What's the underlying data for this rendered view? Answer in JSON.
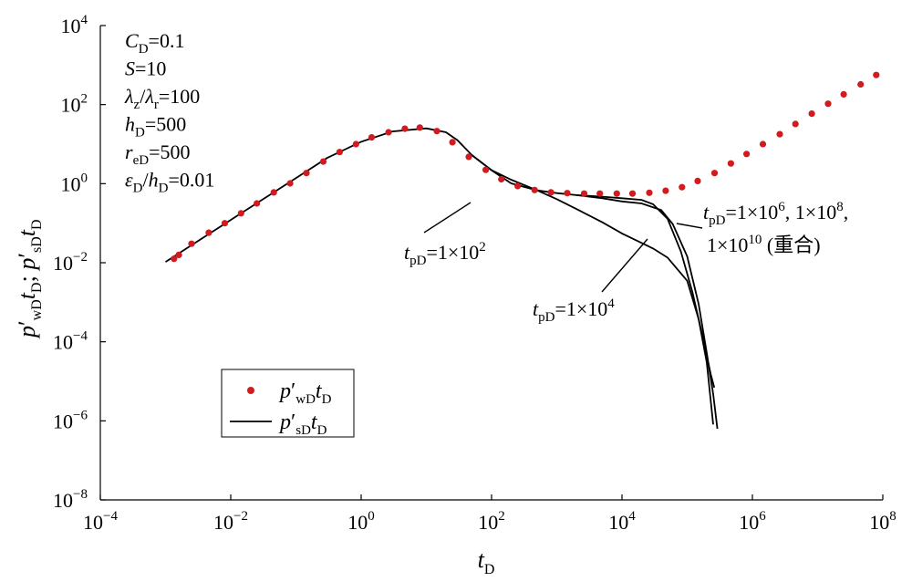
{
  "chart_data": {
    "type": "scatter",
    "xscale": "log",
    "yscale": "log",
    "xlim": [
      0.0001,
      100000000
    ],
    "ylim": [
      1e-08,
      10000
    ],
    "xlabel": {
      "base": "t",
      "sub": "D"
    },
    "ylabel": [
      {
        "base": "p",
        "prime": "′",
        "sub": "wD"
      },
      {
        "base": "t",
        "sub": "D"
      },
      {
        "sep": "; "
      },
      {
        "base": "p",
        "prime": "′",
        "sub": "sD"
      },
      {
        "base": "t",
        "sub": "D"
      }
    ],
    "x_ticks": [
      {
        "base": "10",
        "exp": "−4",
        "value": 0.0001
      },
      {
        "base": "10",
        "exp": "−2",
        "value": 0.01
      },
      {
        "base": "10",
        "exp": "0",
        "value": 1
      },
      {
        "base": "10",
        "exp": "2",
        "value": 100
      },
      {
        "base": "10",
        "exp": "4",
        "value": 10000
      },
      {
        "base": "10",
        "exp": "6",
        "value": 1000000
      },
      {
        "base": "10",
        "exp": "8",
        "value": 100000000
      }
    ],
    "y_ticks": [
      {
        "base": "10",
        "exp": "−8",
        "value": 1e-08
      },
      {
        "base": "10",
        "exp": "−6",
        "value": 1e-06
      },
      {
        "base": "10",
        "exp": "−4",
        "value": 0.0001
      },
      {
        "base": "10",
        "exp": "−2",
        "value": 0.01
      },
      {
        "base": "10",
        "exp": "0",
        "value": 1
      },
      {
        "base": "10",
        "exp": "2",
        "value": 100
      },
      {
        "base": "10",
        "exp": "4",
        "value": 10000
      }
    ],
    "parameters": [
      {
        "sym": "C",
        "sub": "D",
        "eq": "=0.1"
      },
      {
        "sym": "S",
        "sub": "",
        "eq": "=10"
      },
      {
        "sym": "λ",
        "sub": "z",
        "mid": "/",
        "sym2": "λ",
        "sub2": "r",
        "eq": "=100"
      },
      {
        "sym": "h",
        "sub": "D",
        "eq": "=500"
      },
      {
        "sym": "r",
        "sub": "eD",
        "eq": "=500"
      },
      {
        "sym": "ε",
        "sub": "D",
        "mid": "/",
        "sym2": "h",
        "sub2": "D",
        "eq": "=0.01"
      }
    ],
    "legend": {
      "placement": "lower-left",
      "items": [
        {
          "marker": "dot",
          "base": "p",
          "prime": "′",
          "sub": "wD",
          "base2": "t",
          "sub2": "D"
        },
        {
          "marker": "line",
          "base": "p",
          "prime": "′",
          "sub": "sD",
          "base2": "t",
          "sub2": "D"
        }
      ]
    },
    "dots_series": {
      "color": "#d01c1f",
      "points": [
        [
          0.00135,
          0.0126
        ],
        [
          0.0016,
          0.0158
        ],
        [
          0.0025,
          0.0302
        ],
        [
          0.0046,
          0.0575
        ],
        [
          0.0081,
          0.1
        ],
        [
          0.0144,
          0.178
        ],
        [
          0.0251,
          0.316
        ],
        [
          0.0457,
          0.603
        ],
        [
          0.0813,
          1.02
        ],
        [
          0.145,
          1.86
        ],
        [
          0.263,
          3.63
        ],
        [
          0.468,
          6.31
        ],
        [
          0.832,
          10.0
        ],
        [
          1.45,
          14.8
        ],
        [
          2.63,
          20.0
        ],
        [
          4.68,
          24.5
        ],
        [
          7.94,
          26.3
        ],
        [
          14.5,
          21.4
        ],
        [
          25.1,
          11.2
        ],
        [
          44.7,
          4.79
        ],
        [
          81.3,
          2.24
        ],
        [
          141,
          1.29
        ],
        [
          251,
          0.871
        ],
        [
          457,
          0.692
        ],
        [
          813,
          0.603
        ],
        [
          1450,
          0.575
        ],
        [
          2630,
          0.562
        ],
        [
          4570,
          0.562
        ],
        [
          8320,
          0.562
        ],
        [
          14500,
          0.562
        ],
        [
          26300,
          0.589
        ],
        [
          46800,
          0.661
        ],
        [
          83200,
          0.813
        ],
        [
          145000,
          1.17
        ],
        [
          263000,
          1.86
        ],
        [
          468000,
          3.24
        ],
        [
          813000,
          5.62
        ],
        [
          1450000,
          10.0
        ],
        [
          2630000,
          17.8
        ],
        [
          4570000,
          32.4
        ],
        [
          8130000,
          58.9
        ],
        [
          14500000,
          105
        ],
        [
          25100000,
          182
        ],
        [
          45700000,
          324
        ],
        [
          79400000,
          562
        ]
      ]
    },
    "line_series": [
      {
        "label": "1×10² curve",
        "points": [
          [
            0.001,
            0.0105
          ],
          [
            0.01,
            0.121
          ],
          [
            0.1,
            1.38
          ],
          [
            0.3,
            4.47
          ],
          [
            1,
            11.5
          ],
          [
            3,
            20.9
          ],
          [
            10,
            25.1
          ],
          [
            20,
            20.0
          ],
          [
            30,
            12.6
          ],
          [
            50,
            5.25
          ],
          [
            100,
            2.19
          ],
          [
            200,
            1.26
          ],
          [
            500,
            0.676
          ],
          [
            1000,
            0.407
          ],
          [
            2000,
            0.229
          ],
          [
            5000,
            0.105
          ],
          [
            10000,
            0.055
          ],
          [
            20000,
            0.0316
          ],
          [
            30000,
            0.0229
          ],
          [
            50000,
            0.0135
          ],
          [
            100000,
            0.0035
          ],
          [
            150000,
            0.000372
          ],
          [
            200000,
            2.95e-05
          ],
          [
            250000,
            8.1e-07
          ]
        ]
      },
      {
        "label": "1×10⁴ curve",
        "points": [
          [
            50,
            5.25
          ],
          [
            100,
            2.19
          ],
          [
            200,
            1.02
          ],
          [
            500,
            0.676
          ],
          [
            1000,
            0.575
          ],
          [
            2000,
            0.513
          ],
          [
            5000,
            0.427
          ],
          [
            10000,
            0.355
          ],
          [
            20000,
            0.316
          ],
          [
            40000,
            0.214
          ],
          [
            60000,
            0.0955
          ],
          [
            100000,
            0.0145
          ],
          [
            150000,
            0.000891
          ],
          [
            200000,
            5.13e-05
          ],
          [
            250000,
            4.79e-06
          ],
          [
            290000,
            6.3e-07
          ]
        ]
      },
      {
        "label": "1×10⁶, 1×10⁸, 1×10¹⁰ (coincident) curve",
        "points": [
          [
            2000,
            0.513
          ],
          [
            5000,
            0.468
          ],
          [
            10000,
            0.427
          ],
          [
            20000,
            0.389
          ],
          [
            30000,
            0.302
          ],
          [
            50000,
            0.129
          ],
          [
            80000,
            0.0191
          ],
          [
            120000,
            0.00182
          ],
          [
            170000,
            0.000151
          ],
          [
            230000,
            1.48e-05
          ],
          [
            260000,
            6.92e-06
          ]
        ]
      }
    ],
    "annotations": [
      {
        "parts": [
          {
            "i": "t"
          },
          {
            "sub": "pD"
          },
          {
            "t": "=1×10"
          },
          {
            "sup": "2"
          }
        ]
      },
      {
        "parts": [
          {
            "i": "t"
          },
          {
            "sub": "pD"
          },
          {
            "t": "=1×10"
          },
          {
            "sup": "4"
          }
        ]
      },
      {
        "parts": [
          {
            "i": "t"
          },
          {
            "sub": "pD"
          },
          {
            "t": "=1×10"
          },
          {
            "sup": "6"
          },
          {
            "t": ", 1×10"
          },
          {
            "sup": "8"
          },
          {
            "t": ","
          }
        ]
      },
      {
        "parts": [
          {
            "t": "1×10"
          },
          {
            "sup": "10"
          },
          {
            "t": " (重合)"
          }
        ]
      }
    ]
  }
}
